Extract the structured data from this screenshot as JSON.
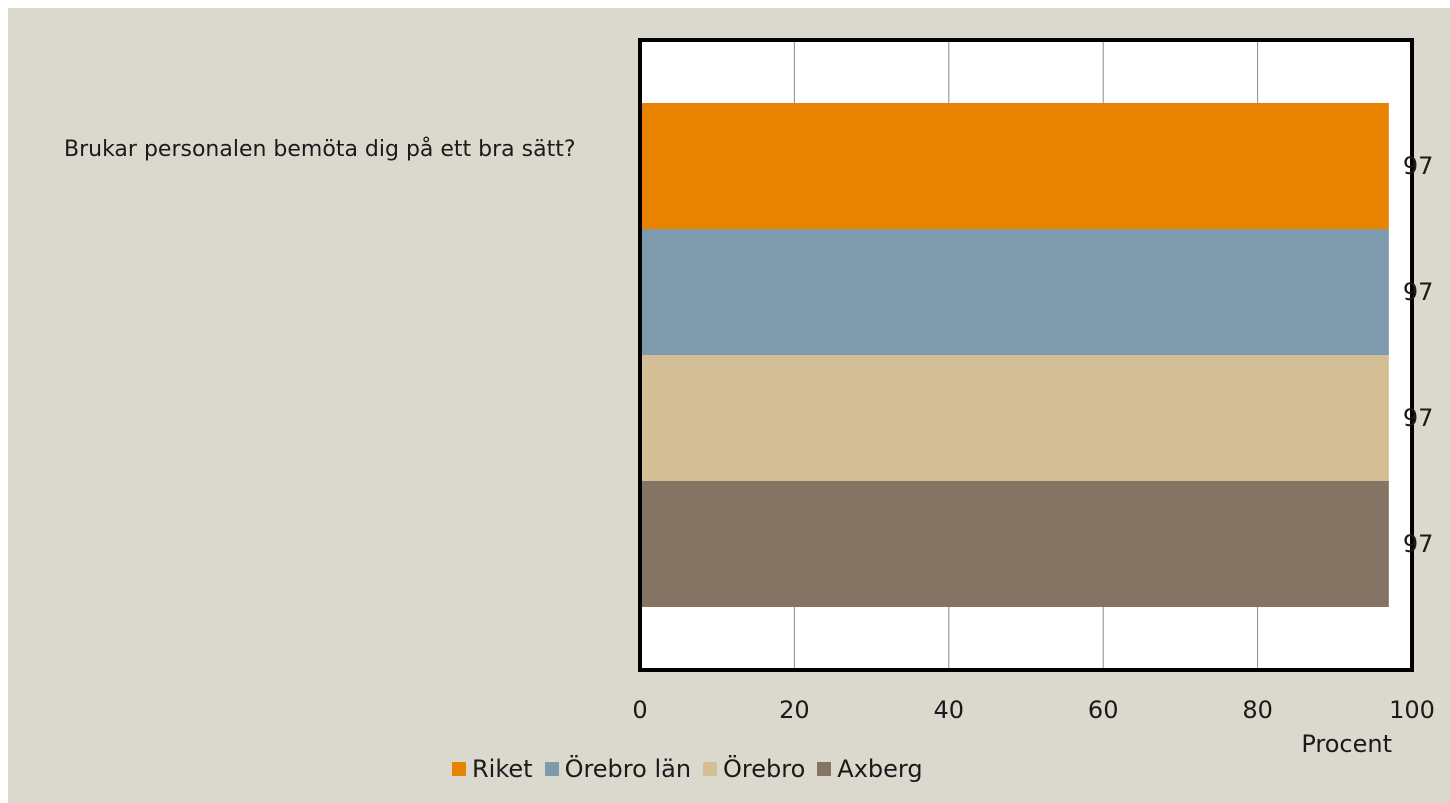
{
  "question": {
    "text": "Brukar personalen bemöta dig på ett bra sätt?"
  },
  "chart_data": {
    "type": "bar",
    "orientation": "horizontal",
    "stacked": false,
    "categories": [
      "Brukar personalen bemöta dig på ett bra sätt?"
    ],
    "series": [
      {
        "name": "Riket",
        "values": [
          97
        ],
        "color": "#e88300"
      },
      {
        "name": "Örebro län",
        "values": [
          97
        ],
        "color": "#7e9aad"
      },
      {
        "name": "Örebro",
        "values": [
          97
        ],
        "color": "#d4be95"
      },
      {
        "name": "Axberg",
        "values": [
          97
        ],
        "color": "#857463"
      }
    ],
    "data_labels": [
      "97",
      "97",
      "97",
      "97"
    ],
    "xlabel": "Procent",
    "xlim": [
      0,
      100
    ],
    "xticks": [
      "0",
      "20",
      "40",
      "60",
      "80",
      "100"
    ],
    "grid": "vertical",
    "legend_position": "bottom"
  }
}
